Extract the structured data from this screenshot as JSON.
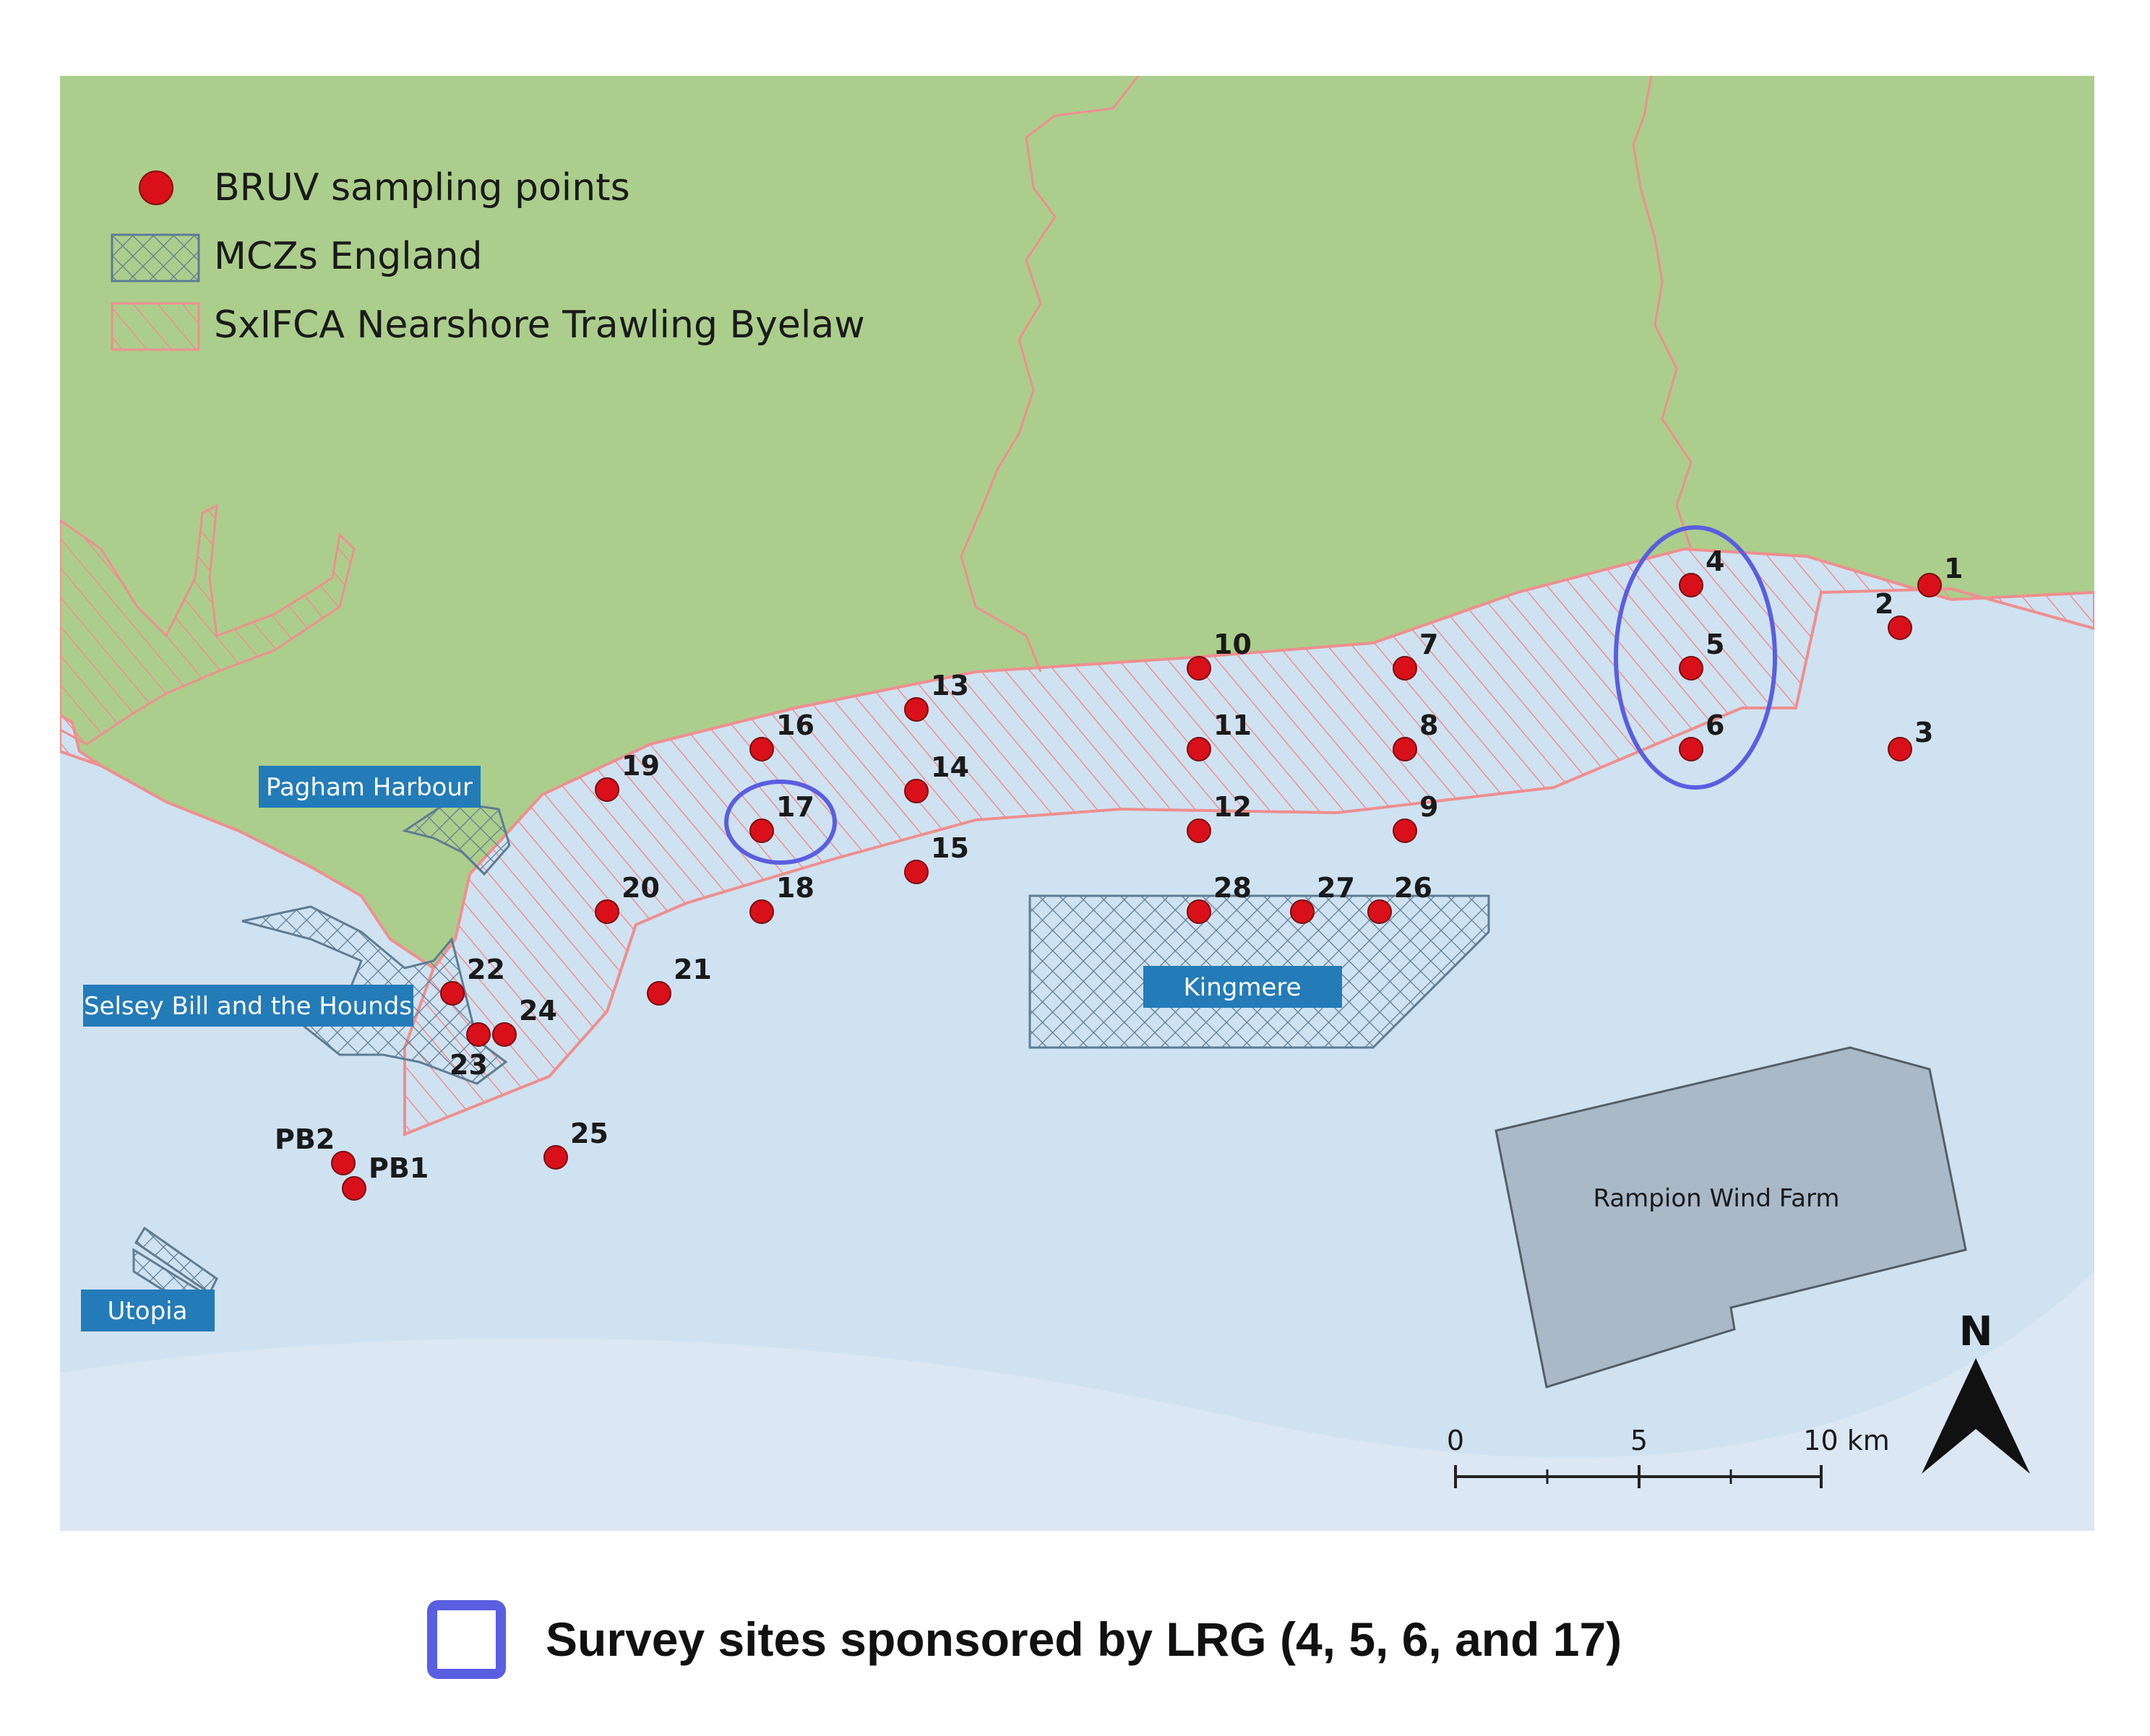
{
  "colors": {
    "land": "#acce8c",
    "sea": "#cfe2f1",
    "point": "#d9101a",
    "byelaw_line": "#ee8f8f",
    "mcz_line": "#5e7c94",
    "label_box": "#237bb8",
    "wind_farm": "#a9b9c8",
    "highlight": "#5a5ee0"
  },
  "legend": [
    {
      "label": "BRUV sampling points",
      "symbol": "point"
    },
    {
      "label": "MCZs England",
      "symbol": "crosshatch"
    },
    {
      "label": "SxIFCA Nearshore Trawling Byelaw",
      "symbol": "diagonal-hatch"
    }
  ],
  "places": {
    "pagham": "Pagham Harbour",
    "selsey": "Selsey Bill and the Hounds",
    "utopia": "Utopia",
    "kingmere": "Kingmere",
    "rampion": "Rampion Wind Farm"
  },
  "points": [
    {
      "id": "p1",
      "label": "1"
    },
    {
      "id": "p2",
      "label": "2"
    },
    {
      "id": "p3",
      "label": "3"
    },
    {
      "id": "p4",
      "label": "4"
    },
    {
      "id": "p5",
      "label": "5"
    },
    {
      "id": "p6",
      "label": "6"
    },
    {
      "id": "p7",
      "label": "7"
    },
    {
      "id": "p8",
      "label": "8"
    },
    {
      "id": "p9",
      "label": "9"
    },
    {
      "id": "p10",
      "label": "10"
    },
    {
      "id": "p11",
      "label": "11"
    },
    {
      "id": "p12",
      "label": "12"
    },
    {
      "id": "p13",
      "label": "13"
    },
    {
      "id": "p14",
      "label": "14"
    },
    {
      "id": "p15",
      "label": "15"
    },
    {
      "id": "p16",
      "label": "16"
    },
    {
      "id": "p17",
      "label": "17"
    },
    {
      "id": "p18",
      "label": "18"
    },
    {
      "id": "p19",
      "label": "19"
    },
    {
      "id": "p20",
      "label": "20"
    },
    {
      "id": "p21",
      "label": "21"
    },
    {
      "id": "p22",
      "label": "22"
    },
    {
      "id": "p23",
      "label": "23"
    },
    {
      "id": "p24",
      "label": "24"
    },
    {
      "id": "p25",
      "label": "25"
    },
    {
      "id": "p26",
      "label": "26"
    },
    {
      "id": "p27",
      "label": "27"
    },
    {
      "id": "p28",
      "label": "28"
    },
    {
      "id": "pb1",
      "label": "PB1"
    },
    {
      "id": "pb2",
      "label": "PB2"
    }
  ],
  "scale_bar": {
    "labels": [
      "0",
      "5",
      "10 km"
    ]
  },
  "north_arrow": "N",
  "caption": "Survey sites sponsored by LRG (4, 5, 6, and 17)"
}
